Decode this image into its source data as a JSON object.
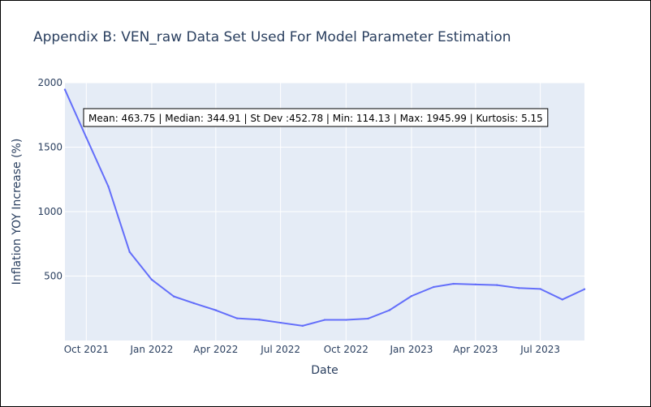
{
  "chart_data": {
    "type": "line",
    "title": "Appendix B: VEN_raw Data Set Used For Model Parameter Estimation",
    "xlabel": "Date",
    "ylabel": "Inflation YOY Increase (%)",
    "annotation": "Mean: 463.75 | Median: 344.91 | St Dev :452.78 | Min: 114.13 | Max: 1945.99 | Kurtosis: 5.15",
    "x_range": [
      "2021-09-01",
      "2023-09-01"
    ],
    "ylim": [
      0,
      2000
    ],
    "grid": true,
    "legend": "none",
    "x_ticks": [
      {
        "date": "2021-10-01",
        "label": "Oct 2021"
      },
      {
        "date": "2022-01-01",
        "label": "Jan 2022"
      },
      {
        "date": "2022-04-01",
        "label": "Apr 2022"
      },
      {
        "date": "2022-07-01",
        "label": "Jul 2022"
      },
      {
        "date": "2022-10-01",
        "label": "Oct 2022"
      },
      {
        "date": "2023-01-01",
        "label": "Jan 2023"
      },
      {
        "date": "2023-04-01",
        "label": "Apr 2023"
      },
      {
        "date": "2023-07-01",
        "label": "Jul 2023"
      }
    ],
    "y_ticks": [
      {
        "value": 500,
        "label": "500"
      },
      {
        "value": 1000,
        "label": "1000"
      },
      {
        "value": 1500,
        "label": "1500"
      },
      {
        "value": 2000,
        "label": "2000"
      }
    ],
    "series": [
      {
        "color": "#636efa",
        "x": [
          "2021-09-01",
          "2021-10-01",
          "2021-11-01",
          "2021-12-01",
          "2022-01-01",
          "2022-02-01",
          "2022-03-01",
          "2022-04-01",
          "2022-05-01",
          "2022-06-01",
          "2022-07-01",
          "2022-08-01",
          "2022-09-01",
          "2022-10-01",
          "2022-11-01",
          "2022-12-01",
          "2023-01-01",
          "2023-02-01",
          "2023-03-01",
          "2023-04-01",
          "2023-05-01",
          "2023-06-01",
          "2023-07-01",
          "2023-08-01",
          "2023-09-01"
        ],
        "y": [
          1945.99,
          1575,
          1195,
          686,
          472,
          342,
          290,
          235,
          172,
          162,
          138,
          114.13,
          160,
          160,
          170,
          235,
          345,
          415,
          440,
          435,
          430,
          407,
          400,
          318,
          398
        ]
      }
    ]
  },
  "colors": {
    "plot_background": "#e5ecf6",
    "grid": "#ffffff",
    "text": "#2a3f5f",
    "line": "#636efa"
  }
}
